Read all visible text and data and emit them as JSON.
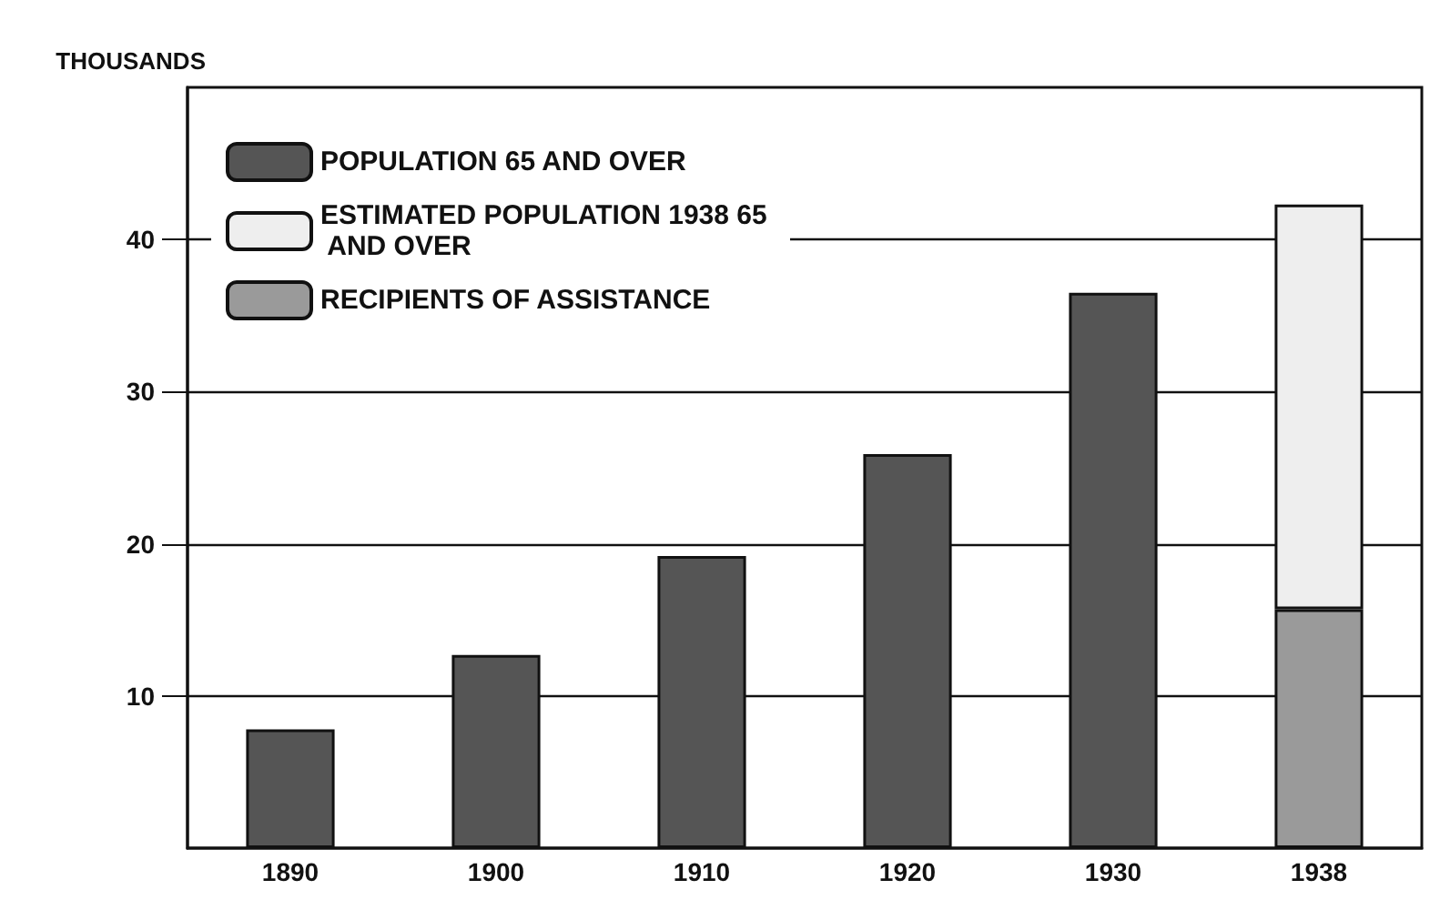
{
  "chart_data": {
    "type": "bar",
    "ylabel": "THOUSANDS",
    "categories": [
      "1890",
      "1900",
      "1910",
      "1920",
      "1930",
      "1938"
    ],
    "stacked": true,
    "series": [
      {
        "name": "POPULATION 65 AND OVER",
        "color": "#555555",
        "values": [
          7.8,
          12.7,
          19.2,
          25.9,
          36.5,
          null
        ]
      },
      {
        "name": "RECIPIENTS OF ASSISTANCE",
        "color": "#9a9a9a",
        "values": [
          null,
          null,
          null,
          null,
          null,
          15.7
        ]
      },
      {
        "name": "ESTIMATED POPULATION 1938 65 AND OVER",
        "color": "#eeeeee",
        "values": [
          null,
          null,
          null,
          null,
          null,
          26.6
        ]
      }
    ],
    "ylim": [
      0,
      50
    ],
    "yticks": [
      10,
      20,
      30,
      40
    ],
    "grid": "y",
    "legend": "top left"
  }
}
